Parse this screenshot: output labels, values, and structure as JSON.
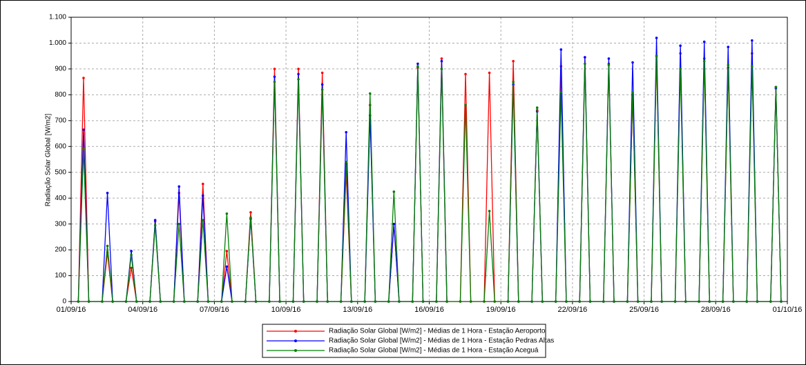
{
  "chart_data": {
    "type": "line",
    "y_label": "Radiação Solar Global [W/m2]",
    "x": [
      0.3,
      0.52,
      0.74,
      1.3,
      1.52,
      1.74,
      2.3,
      2.52,
      2.74,
      3.3,
      3.52,
      3.74,
      4.3,
      4.52,
      4.74,
      5.3,
      5.52,
      5.74,
      6.3,
      6.52,
      6.74,
      7.3,
      7.52,
      7.74,
      8.3,
      8.52,
      8.74,
      9.3,
      9.52,
      9.74,
      10.3,
      10.52,
      10.74,
      11.3,
      11.52,
      11.74,
      12.3,
      12.52,
      12.74,
      13.3,
      13.52,
      13.74,
      14.3,
      14.52,
      14.74,
      15.3,
      15.52,
      15.74,
      16.3,
      16.52,
      16.74,
      17.3,
      17.52,
      17.74,
      18.3,
      18.52,
      18.74,
      19.3,
      19.52,
      19.74,
      20.3,
      20.52,
      20.74,
      21.3,
      21.52,
      21.74,
      22.3,
      22.52,
      22.74,
      23.3,
      23.52,
      23.74,
      24.3,
      24.52,
      24.74,
      25.3,
      25.52,
      25.74,
      26.3,
      26.52,
      26.74,
      27.3,
      27.52,
      27.74,
      28.3,
      28.52,
      28.74,
      29.3,
      29.52,
      29.74
    ],
    "series": [
      {
        "name": "Radiação Solar Global [W/m2] - Médias de 1 Hora - Estação Aeroporto",
        "color": "#ff0000",
        "values": [
          0,
          865,
          0,
          0,
          190,
          0,
          0,
          130,
          0,
          0,
          310,
          0,
          0,
          420,
          0,
          0,
          455,
          0,
          0,
          195,
          0,
          0,
          345,
          0,
          0,
          900,
          0,
          0,
          900,
          0,
          0,
          885,
          0,
          0,
          500,
          0,
          0,
          760,
          0,
          0,
          300,
          0,
          0,
          905,
          0,
          0,
          940,
          0,
          0,
          880,
          0,
          0,
          885,
          0,
          0,
          930,
          0,
          0,
          740,
          0,
          0,
          910,
          0,
          0,
          945,
          0,
          0,
          920,
          0,
          0,
          800,
          0,
          0,
          950,
          0,
          0,
          960,
          0,
          0,
          940,
          0,
          0,
          905,
          0,
          0,
          960,
          0,
          0,
          830,
          0
        ]
      },
      {
        "name": "Radiação Solar Global [W/m2] - Médias de 1 Hora - Estação Pedras Altas",
        "color": "#0000ff",
        "values": [
          0,
          665,
          0,
          0,
          420,
          0,
          0,
          195,
          0,
          0,
          315,
          0,
          0,
          445,
          0,
          0,
          410,
          0,
          0,
          135,
          0,
          0,
          320,
          0,
          0,
          870,
          0,
          0,
          880,
          0,
          0,
          840,
          0,
          0,
          655,
          0,
          0,
          720,
          0,
          0,
          300,
          0,
          0,
          920,
          0,
          0,
          930,
          0,
          null,
          null,
          null,
          null,
          null,
          null,
          0,
          840,
          0,
          0,
          735,
          0,
          0,
          975,
          0,
          0,
          945,
          0,
          0,
          940,
          0,
          0,
          925,
          0,
          0,
          1020,
          0,
          0,
          990,
          0,
          0,
          1005,
          0,
          0,
          985,
          0,
          0,
          1010,
          0,
          0,
          825,
          0
        ]
      },
      {
        "name": "Radiação Solar Global [W/m2] - Médias de 1 Hora - Estação Aceguá",
        "color": "#008000",
        "values": [
          0,
          590,
          0,
          0,
          215,
          0,
          0,
          180,
          0,
          0,
          295,
          0,
          0,
          300,
          0,
          0,
          315,
          0,
          0,
          340,
          0,
          0,
          325,
          0,
          0,
          850,
          0,
          0,
          860,
          0,
          0,
          820,
          0,
          0,
          540,
          0,
          0,
          805,
          0,
          0,
          425,
          0,
          0,
          910,
          0,
          0,
          900,
          0,
          0,
          760,
          0,
          0,
          350,
          0,
          0,
          850,
          0,
          0,
          750,
          0,
          0,
          810,
          0,
          0,
          920,
          0,
          0,
          915,
          0,
          0,
          810,
          0,
          0,
          950,
          0,
          0,
          900,
          0,
          0,
          930,
          0,
          0,
          915,
          0,
          0,
          910,
          0,
          0,
          830,
          0
        ]
      }
    ],
    "xlim": [
      0,
      30
    ],
    "xticks": [
      {
        "value": 0,
        "label": "01/09/16"
      },
      {
        "value": 3,
        "label": "04/09/16"
      },
      {
        "value": 6,
        "label": "07/09/16"
      },
      {
        "value": 9,
        "label": "10/09/16"
      },
      {
        "value": 12,
        "label": "13/09/16"
      },
      {
        "value": 15,
        "label": "16/09/16"
      },
      {
        "value": 18,
        "label": "19/09/16"
      },
      {
        "value": 21,
        "label": "22/09/16"
      },
      {
        "value": 24,
        "label": "25/09/16"
      },
      {
        "value": 27,
        "label": "28/09/16"
      },
      {
        "value": 30,
        "label": "01/10/16"
      }
    ],
    "ylim": [
      0,
      1100
    ],
    "yticks": [
      0,
      100,
      200,
      300,
      400,
      500,
      600,
      700,
      800,
      900,
      {
        "value": 1000,
        "label": "1.000"
      },
      {
        "value": 1100,
        "label": "1.100"
      }
    ],
    "grid": true
  }
}
